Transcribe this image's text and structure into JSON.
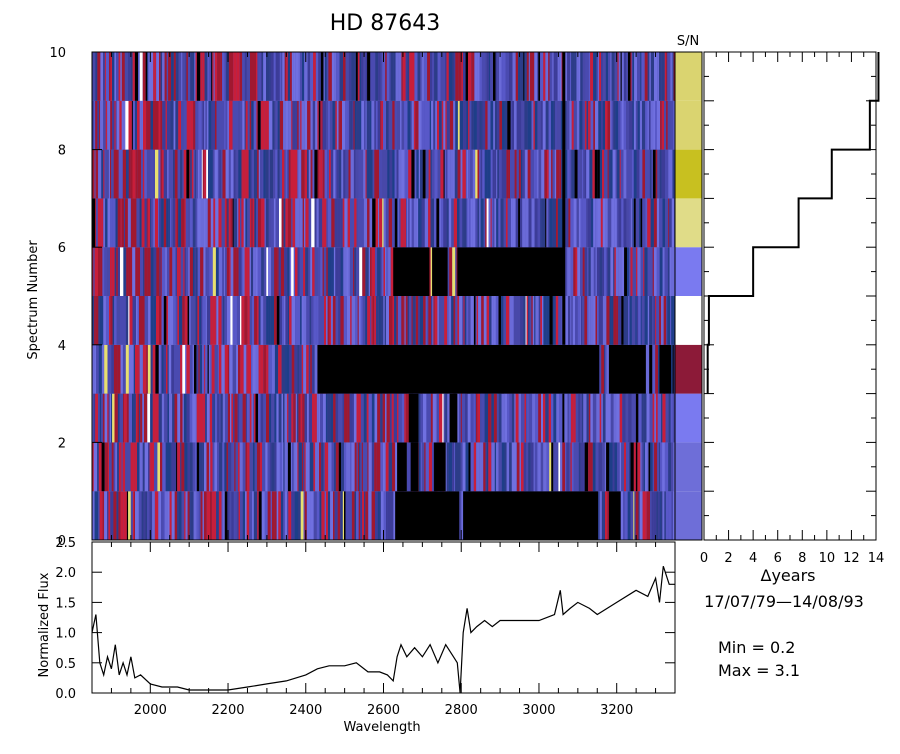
{
  "title": "HD  87643",
  "sn_label": "S/N",
  "chart_data": [
    {
      "type": "heatmap",
      "title": "HD  87643",
      "ylabel": "Spectrum Number",
      "xlim": [
        1850,
        3350
      ],
      "ylim": [
        0,
        10
      ],
      "yticks": [
        0,
        2,
        4,
        6,
        8,
        10
      ],
      "tick_labels_y": [
        "0",
        "2",
        "4",
        "6",
        "8",
        "10"
      ],
      "rows": [
        {
          "index": 0,
          "sn_color": "#6E6ED8",
          "black_ranges": [
            [
              2630,
              2795
            ],
            [
              2805,
              3150
            ],
            [
              3180,
              3210
            ]
          ]
        },
        {
          "index": 1,
          "sn_color": "#6E6ED8",
          "black_ranges": [
            [
              2635,
              2660
            ],
            [
              2670,
              2690
            ],
            [
              2730,
              2760
            ]
          ]
        },
        {
          "index": 2,
          "sn_color": "#7A7AF0",
          "black_ranges": [
            [
              2665,
              2690
            ],
            [
              2770,
              2790
            ]
          ]
        },
        {
          "index": 3,
          "sn_color": "#8C1A38",
          "black_ranges": [
            [
              2430,
              3155
            ],
            [
              3180,
              3275
            ],
            [
              3310,
              3340
            ]
          ]
        },
        {
          "index": 4,
          "sn_color": "#FFFFFF",
          "black_ranges": []
        },
        {
          "index": 5,
          "sn_color": "#7A7AF0",
          "black_ranges": [
            [
              2625,
              2715
            ],
            [
              2725,
              2765
            ],
            [
              2790,
              3065
            ]
          ]
        },
        {
          "index": 6,
          "sn_color": "#E0DC88",
          "black_ranges": []
        },
        {
          "index": 7,
          "sn_color": "#C8C020",
          "black_ranges": []
        },
        {
          "index": 8,
          "sn_color": "#DAD470",
          "black_ranges": []
        },
        {
          "index": 9,
          "sn_color": "#DAD470",
          "black_ranges": []
        }
      ]
    },
    {
      "type": "line",
      "xlabel": "Δyears",
      "ylim": [
        0,
        10
      ],
      "xlim": [
        0,
        14
      ],
      "xticks": [
        0,
        2,
        4,
        6,
        8,
        10,
        12,
        14
      ],
      "tick_labels_x": [
        "0",
        "2",
        "4",
        "6",
        "8",
        "10",
        "12",
        "14"
      ],
      "steps": [
        {
          "spectrum": 3,
          "delta_years": 0.3
        },
        {
          "spectrum": 4,
          "delta_years": 0.4
        },
        {
          "spectrum": 5,
          "delta_years": 4.0
        },
        {
          "spectrum": 6,
          "delta_years": 7.7
        },
        {
          "spectrum": 7,
          "delta_years": 10.4
        },
        {
          "spectrum": 8,
          "delta_years": 13.5
        },
        {
          "spectrum": 9,
          "delta_years": 14.2
        },
        {
          "spectrum": 10,
          "delta_years": 14.2
        }
      ]
    },
    {
      "type": "line",
      "xlabel": "Wavelength",
      "ylabel": "Normalized Flux",
      "xlim": [
        1850,
        3350
      ],
      "ylim": [
        0,
        2.5
      ],
      "xticks": [
        2000,
        2200,
        2400,
        2600,
        2800,
        3000,
        3200
      ],
      "tick_labels_x": [
        "2000",
        "2200",
        "2400",
        "2600",
        "2800",
        "3000",
        "3200"
      ],
      "yticks": [
        0,
        0.5,
        1.0,
        1.5,
        2.0,
        2.5
      ],
      "tick_labels_y": [
        "0.0",
        "0.5",
        "1.0",
        "1.5",
        "2.0",
        "2.5"
      ],
      "x": [
        1850,
        1860,
        1870,
        1880,
        1890,
        1900,
        1910,
        1920,
        1930,
        1940,
        1950,
        1960,
        1975,
        2000,
        2030,
        2070,
        2100,
        2150,
        2200,
        2250,
        2300,
        2350,
        2400,
        2430,
        2460,
        2500,
        2530,
        2560,
        2590,
        2610,
        2625,
        2635,
        2645,
        2660,
        2680,
        2700,
        2720,
        2740,
        2760,
        2780,
        2790,
        2797,
        2805,
        2815,
        2825,
        2840,
        2860,
        2880,
        2900,
        2950,
        3000,
        3040,
        3055,
        3062,
        3080,
        3100,
        3130,
        3150,
        3200,
        3250,
        3280,
        3300,
        3310,
        3320,
        3335,
        3350
      ],
      "series": [
        {
          "values": [
            1.0,
            1.3,
            0.5,
            0.3,
            0.6,
            0.4,
            0.8,
            0.3,
            0.5,
            0.3,
            0.6,
            0.25,
            0.3,
            0.15,
            0.1,
            0.1,
            0.05,
            0.05,
            0.05,
            0.1,
            0.15,
            0.2,
            0.3,
            0.4,
            0.45,
            0.45,
            0.5,
            0.35,
            0.35,
            0.3,
            0.2,
            0.6,
            0.8,
            0.6,
            0.75,
            0.6,
            0.8,
            0.5,
            0.8,
            0.6,
            0.5,
            0.0,
            1.0,
            1.4,
            1.0,
            1.1,
            1.2,
            1.1,
            1.2,
            1.2,
            1.2,
            1.3,
            1.7,
            1.3,
            1.4,
            1.5,
            1.4,
            1.3,
            1.5,
            1.7,
            1.6,
            1.9,
            1.5,
            2.1,
            1.8,
            1.8
          ]
        }
      ]
    }
  ],
  "date_range": "17/07/79—14/08/93",
  "min_label": "Min =  0.2",
  "max_label": "Max =  3.1"
}
